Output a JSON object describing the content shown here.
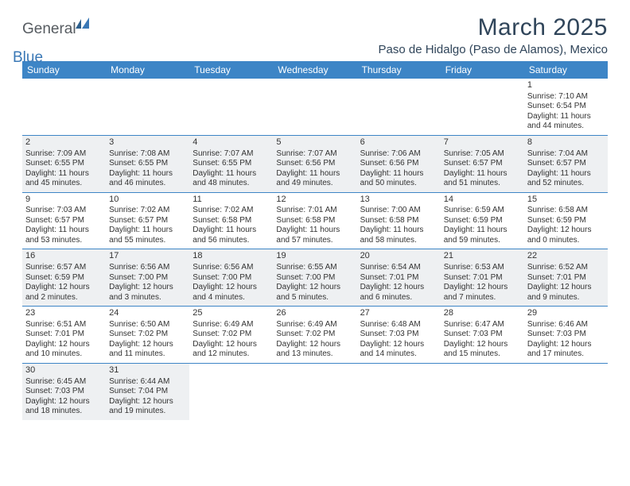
{
  "logo": {
    "general": "General",
    "blue": "Blue"
  },
  "title": "March 2025",
  "location": "Paso de Hidalgo (Paso de Alamos), Mexico",
  "colors": {
    "header_bg": "#3d85c6",
    "header_fg": "#ffffff",
    "border": "#3d85c6",
    "shaded_bg": "#eef0f2",
    "text": "#333333",
    "title_color": "#30455a",
    "logo_gray": "#565b60",
    "logo_blue": "#3a78b6"
  },
  "weekdays": [
    "Sunday",
    "Monday",
    "Tuesday",
    "Wednesday",
    "Thursday",
    "Friday",
    "Saturday"
  ],
  "weeks": [
    [
      null,
      null,
      null,
      null,
      null,
      null,
      {
        "n": "1",
        "sr": "7:10 AM",
        "ss": "6:54 PM",
        "dl": "11 hours and 44 minutes."
      }
    ],
    [
      {
        "n": "2",
        "sr": "7:09 AM",
        "ss": "6:55 PM",
        "dl": "11 hours and 45 minutes."
      },
      {
        "n": "3",
        "sr": "7:08 AM",
        "ss": "6:55 PM",
        "dl": "11 hours and 46 minutes."
      },
      {
        "n": "4",
        "sr": "7:07 AM",
        "ss": "6:55 PM",
        "dl": "11 hours and 48 minutes."
      },
      {
        "n": "5",
        "sr": "7:07 AM",
        "ss": "6:56 PM",
        "dl": "11 hours and 49 minutes."
      },
      {
        "n": "6",
        "sr": "7:06 AM",
        "ss": "6:56 PM",
        "dl": "11 hours and 50 minutes."
      },
      {
        "n": "7",
        "sr": "7:05 AM",
        "ss": "6:57 PM",
        "dl": "11 hours and 51 minutes."
      },
      {
        "n": "8",
        "sr": "7:04 AM",
        "ss": "6:57 PM",
        "dl": "11 hours and 52 minutes."
      }
    ],
    [
      {
        "n": "9",
        "sr": "7:03 AM",
        "ss": "6:57 PM",
        "dl": "11 hours and 53 minutes."
      },
      {
        "n": "10",
        "sr": "7:02 AM",
        "ss": "6:57 PM",
        "dl": "11 hours and 55 minutes."
      },
      {
        "n": "11",
        "sr": "7:02 AM",
        "ss": "6:58 PM",
        "dl": "11 hours and 56 minutes."
      },
      {
        "n": "12",
        "sr": "7:01 AM",
        "ss": "6:58 PM",
        "dl": "11 hours and 57 minutes."
      },
      {
        "n": "13",
        "sr": "7:00 AM",
        "ss": "6:58 PM",
        "dl": "11 hours and 58 minutes."
      },
      {
        "n": "14",
        "sr": "6:59 AM",
        "ss": "6:59 PM",
        "dl": "11 hours and 59 minutes."
      },
      {
        "n": "15",
        "sr": "6:58 AM",
        "ss": "6:59 PM",
        "dl": "12 hours and 0 minutes."
      }
    ],
    [
      {
        "n": "16",
        "sr": "6:57 AM",
        "ss": "6:59 PM",
        "dl": "12 hours and 2 minutes."
      },
      {
        "n": "17",
        "sr": "6:56 AM",
        "ss": "7:00 PM",
        "dl": "12 hours and 3 minutes."
      },
      {
        "n": "18",
        "sr": "6:56 AM",
        "ss": "7:00 PM",
        "dl": "12 hours and 4 minutes."
      },
      {
        "n": "19",
        "sr": "6:55 AM",
        "ss": "7:00 PM",
        "dl": "12 hours and 5 minutes."
      },
      {
        "n": "20",
        "sr": "6:54 AM",
        "ss": "7:01 PM",
        "dl": "12 hours and 6 minutes."
      },
      {
        "n": "21",
        "sr": "6:53 AM",
        "ss": "7:01 PM",
        "dl": "12 hours and 7 minutes."
      },
      {
        "n": "22",
        "sr": "6:52 AM",
        "ss": "7:01 PM",
        "dl": "12 hours and 9 minutes."
      }
    ],
    [
      {
        "n": "23",
        "sr": "6:51 AM",
        "ss": "7:01 PM",
        "dl": "12 hours and 10 minutes."
      },
      {
        "n": "24",
        "sr": "6:50 AM",
        "ss": "7:02 PM",
        "dl": "12 hours and 11 minutes."
      },
      {
        "n": "25",
        "sr": "6:49 AM",
        "ss": "7:02 PM",
        "dl": "12 hours and 12 minutes."
      },
      {
        "n": "26",
        "sr": "6:49 AM",
        "ss": "7:02 PM",
        "dl": "12 hours and 13 minutes."
      },
      {
        "n": "27",
        "sr": "6:48 AM",
        "ss": "7:03 PM",
        "dl": "12 hours and 14 minutes."
      },
      {
        "n": "28",
        "sr": "6:47 AM",
        "ss": "7:03 PM",
        "dl": "12 hours and 15 minutes."
      },
      {
        "n": "29",
        "sr": "6:46 AM",
        "ss": "7:03 PM",
        "dl": "12 hours and 17 minutes."
      }
    ],
    [
      {
        "n": "30",
        "sr": "6:45 AM",
        "ss": "7:03 PM",
        "dl": "12 hours and 18 minutes."
      },
      {
        "n": "31",
        "sr": "6:44 AM",
        "ss": "7:04 PM",
        "dl": "12 hours and 19 minutes."
      },
      null,
      null,
      null,
      null,
      null
    ]
  ],
  "labels": {
    "sunrise": "Sunrise:",
    "sunset": "Sunset:",
    "daylight": "Daylight:"
  }
}
